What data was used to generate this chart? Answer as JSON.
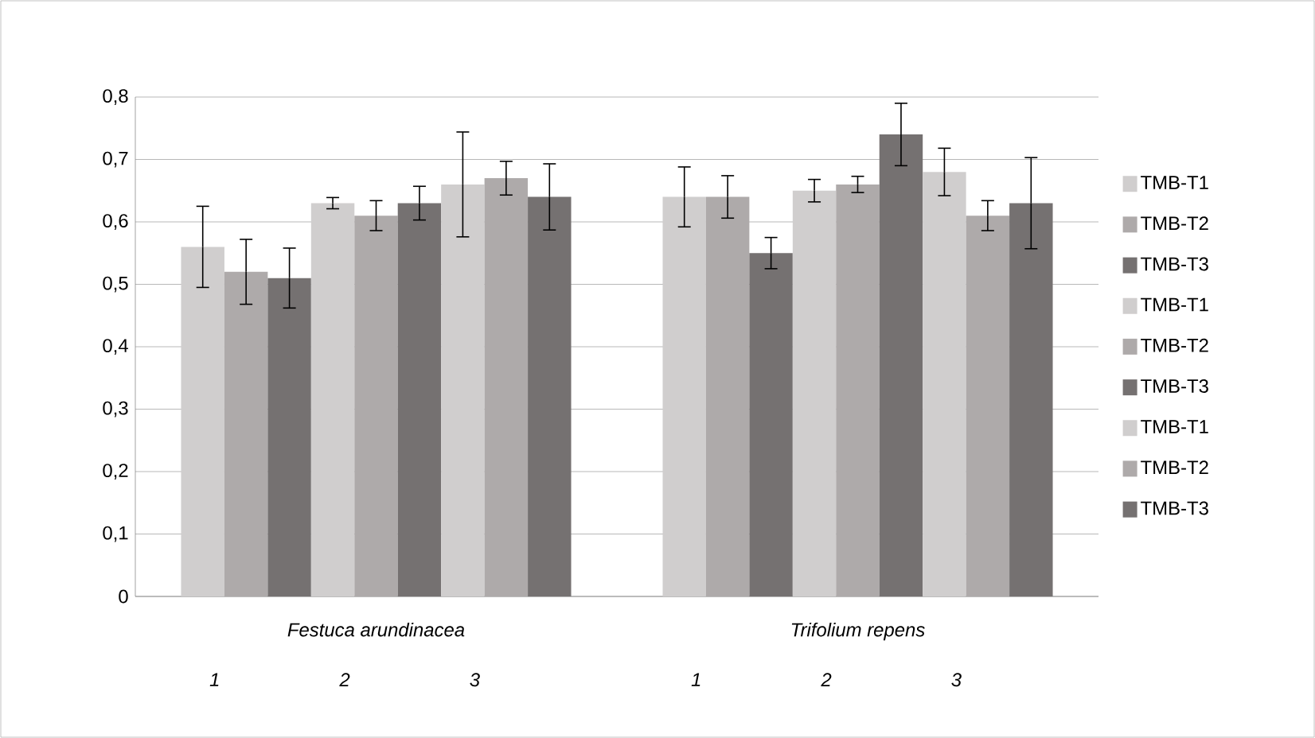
{
  "chart_data": {
    "type": "bar",
    "categories": [
      "Festuca arundinacea",
      "Trifolium repens"
    ],
    "series": [
      {
        "name": "TMB-T1",
        "color": "#d0cece",
        "values": [
          0.56,
          0.64
        ],
        "errors": [
          0.065,
          0.048
        ]
      },
      {
        "name": "TMB-T2",
        "color": "#aeaaaa",
        "values": [
          0.52,
          0.64
        ],
        "errors": [
          0.052,
          0.034
        ]
      },
      {
        "name": "TMB-T3",
        "color": "#757171",
        "values": [
          0.51,
          0.55
        ],
        "errors": [
          0.048,
          0.025
        ]
      },
      {
        "name": "TMB-T1",
        "color": "#d0cece",
        "values": [
          0.63,
          0.65
        ],
        "errors": [
          0.009,
          0.018
        ]
      },
      {
        "name": "TMB-T2",
        "color": "#aeaaaa",
        "values": [
          0.61,
          0.66
        ],
        "errors": [
          0.024,
          0.013
        ]
      },
      {
        "name": "TMB-T3",
        "color": "#757171",
        "values": [
          0.63,
          0.74
        ],
        "errors": [
          0.027,
          0.05
        ]
      },
      {
        "name": "TMB-T1",
        "color": "#d0cece",
        "values": [
          0.66,
          0.68
        ],
        "errors": [
          0.084,
          0.038
        ]
      },
      {
        "name": "TMB-T2",
        "color": "#aeaaaa",
        "values": [
          0.67,
          0.61
        ],
        "errors": [
          0.027,
          0.024
        ]
      },
      {
        "name": "TMB-T3",
        "color": "#757171",
        "values": [
          0.64,
          0.63
        ],
        "errors": [
          0.053,
          0.073
        ]
      }
    ],
    "ylim": [
      0,
      0.8
    ],
    "yticks": [
      0,
      {
        "value": 0.1,
        "label": "0,1"
      },
      {
        "value": 0.2,
        "label": "0,2"
      },
      {
        "value": 0.3,
        "label": "0,3"
      },
      {
        "value": 0.4,
        "label": "0,4"
      },
      {
        "value": 0.5,
        "label": "0,5"
      },
      {
        "value": 0.6,
        "label": "0,6"
      },
      {
        "value": 0.7,
        "label": "0,7"
      },
      {
        "value": 0.8,
        "label": "0,8"
      }
    ],
    "grid": "y",
    "legend": "right",
    "annotations": [
      "1",
      "2",
      "3",
      "1",
      "2",
      "3"
    ]
  }
}
